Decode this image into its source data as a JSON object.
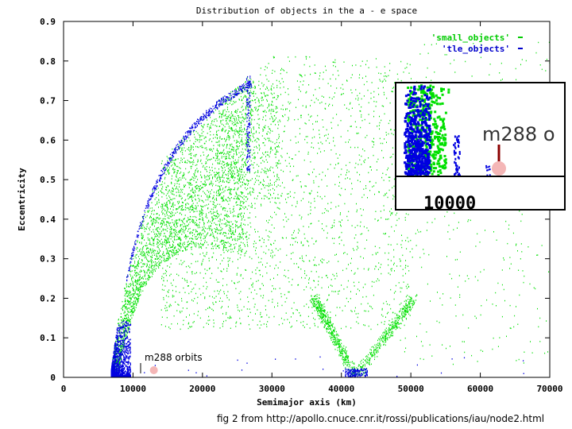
{
  "chart_data": {
    "type": "scatter",
    "title": "Distribution of objects in the a - e space",
    "xlabel": "Semimajor axis (km)",
    "ylabel": "Eccentricity",
    "xlim": [
      0,
      70000
    ],
    "ylim": [
      0,
      0.9
    ],
    "x_ticks": [
      "0",
      "10000",
      "20000",
      "30000",
      "40000",
      "50000",
      "60000",
      "70000"
    ],
    "y_ticks": [
      "0",
      "0.1",
      "0.2",
      "0.3",
      "0.4",
      "0.5",
      "0.6",
      "0.7",
      "0.8",
      "0.9"
    ],
    "legend_position": "top-right",
    "series": [
      {
        "name": "'small_objects'",
        "color": "#00e000",
        "marker": "dot",
        "regions": [
          {
            "kind": "band_low_leo",
            "a_min": 6800,
            "a_max": 10200,
            "e_min": 0,
            "e_max": 0.3,
            "density": "very high"
          },
          {
            "kind": "gto_arc",
            "a_min": 10000,
            "a_max": 26000,
            "e_min": 0.3,
            "e_max": 0.75,
            "density": "high"
          },
          {
            "kind": "cloud",
            "a_min": 20000,
            "a_max": 50000,
            "e_min": 0.2,
            "e_max": 0.85,
            "density": "medium"
          },
          {
            "kind": "v_shape_geo",
            "vertex_a": 42000,
            "vertex_e": 0.0,
            "left_top": [
              37000,
              0.18
            ],
            "right_top": [
              50000,
              0.17
            ],
            "density": "medium"
          },
          {
            "kind": "sparse",
            "a_min": 50000,
            "a_max": 70000,
            "e_min": 0.05,
            "e_max": 0.85,
            "density": "low"
          }
        ]
      },
      {
        "name": "'tle_objects'",
        "color": "#0000e0",
        "marker": "dot",
        "regions": [
          {
            "kind": "leo_column",
            "a_min": 6800,
            "a_max": 9000,
            "e_min": 0,
            "e_max": 0.12,
            "density": "very high"
          },
          {
            "kind": "gto_edge",
            "a_min": 8000,
            "a_max": 27000,
            "e_min": 0.1,
            "e_max": 0.76,
            "density": "medium"
          },
          {
            "kind": "molniya_column",
            "a_min": 26300,
            "a_max": 26800,
            "e_min": 0.5,
            "e_max": 0.76,
            "density": "medium"
          },
          {
            "kind": "geo_cluster",
            "a_min": 40500,
            "a_max": 43500,
            "e_min": 0,
            "e_max": 0.02,
            "density": "medium"
          }
        ]
      }
    ],
    "annotations": [
      {
        "text": "m288 orbits",
        "a": 13000,
        "e": 0.01,
        "marker_color": "#f4b6b6"
      }
    ],
    "inset": {
      "x_tick": "10000",
      "label": "m288 o",
      "note": "zoomed view near 10000 km"
    },
    "caption": "fig 2 from http://apollo.cnuce.cnr.it/rossi/publications/iau/node2.html"
  }
}
